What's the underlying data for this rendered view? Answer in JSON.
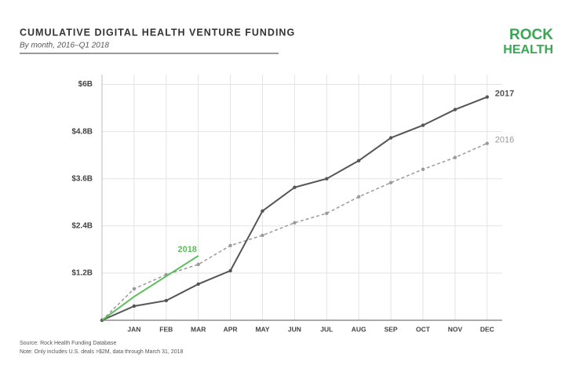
{
  "chart_data": {
    "type": "line",
    "title": "CUMULATIVE DIGITAL HEALTH VENTURE FUNDING",
    "subtitle": "By month, 2016–Q1 2018",
    "logo": [
      "ROCK",
      "HEALTH"
    ],
    "categories": [
      null,
      "JAN",
      "FEB",
      "MAR",
      "APR",
      "MAY",
      "JUN",
      "JUL",
      "AUG",
      "SEP",
      "OCT",
      "NOV",
      "DEC"
    ],
    "series": [
      {
        "name": "2016",
        "color": "#9a9a9a",
        "style": "dashed",
        "markers": true,
        "values": [
          0,
          0.8,
          1.16,
          1.42,
          1.9,
          2.16,
          2.48,
          2.72,
          3.14,
          3.5,
          3.84,
          4.14,
          4.5
        ]
      },
      {
        "name": "2017",
        "color": "#555555",
        "style": "solid",
        "markers": true,
        "values": [
          0,
          0.36,
          0.5,
          0.92,
          1.26,
          2.78,
          3.38,
          3.6,
          4.06,
          4.64,
          4.96,
          5.36,
          5.68
        ]
      },
      {
        "name": "2018",
        "color": "#5cbf5c",
        "style": "solid",
        "markers": false,
        "values": [
          0,
          0.6,
          1.12,
          1.64,
          null,
          null,
          null,
          null,
          null,
          null,
          null,
          null,
          null
        ]
      }
    ],
    "ylim": [
      0,
      6.25
    ],
    "yticks": [
      {
        "value": 1.2,
        "label": "$1.2B"
      },
      {
        "value": 2.4,
        "label": "$2.4B"
      },
      {
        "value": 3.6,
        "label": "$3.6B"
      },
      {
        "value": 4.8,
        "label": "$4.8B"
      },
      {
        "value": 6,
        "label": "$6B"
      }
    ],
    "grid": true,
    "source": "Source: Rock Health Funding Database",
    "note": "Note: Only includes U.S. deals >$2M, data through March 31, 2018"
  }
}
